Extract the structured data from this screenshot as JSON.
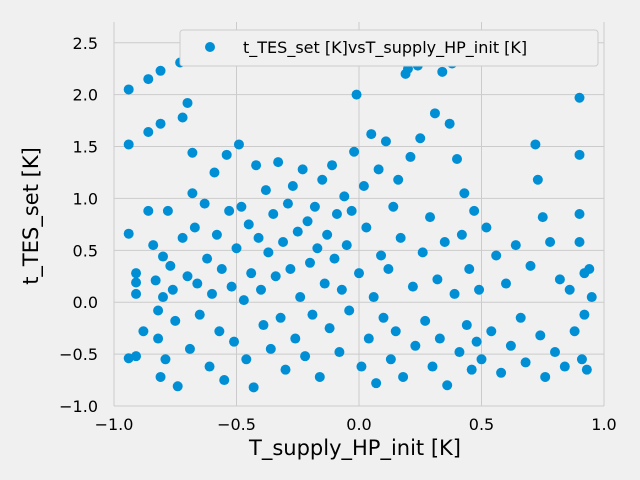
{
  "chart_data": {
    "type": "scatter",
    "xlabel": "T_supply_HP_init [K]",
    "ylabel": "t_TES_set [K]",
    "xlim": [
      -1.0,
      1.0
    ],
    "ylim": [
      -1.0,
      2.7
    ],
    "xticks": [
      -1.0,
      -0.5,
      0.0,
      0.5,
      1.0
    ],
    "xtick_labels": [
      "−1.0",
      "−0.5",
      "0.0",
      "0.5",
      "1.0"
    ],
    "yticks": [
      -1.0,
      -0.5,
      0.0,
      0.5,
      1.0,
      1.5,
      2.0,
      2.5
    ],
    "ytick_labels": [
      "−1.0",
      "−0.5",
      "0.0",
      "0.5",
      "1.0",
      "1.5",
      "2.0",
      "2.5"
    ],
    "grid": true,
    "legend_position": "top-right",
    "colors": {
      "marker": "#008fd5",
      "grid": "#cbcbcb",
      "background": "#f0f0f0"
    },
    "series": [
      {
        "name": "t_TES_set [K]vsT_supply_HP_init [K]",
        "points": [
          [
            -0.94,
            2.05
          ],
          [
            -0.94,
            1.52
          ],
          [
            -0.94,
            0.66
          ],
          [
            -0.94,
            -0.54
          ],
          [
            -0.91,
            -0.52
          ],
          [
            -0.91,
            0.28
          ],
          [
            -0.91,
            0.19
          ],
          [
            -0.91,
            0.08
          ],
          [
            -0.88,
            -0.28
          ],
          [
            -0.86,
            1.64
          ],
          [
            -0.86,
            2.15
          ],
          [
            -0.86,
            0.88
          ],
          [
            -0.84,
            0.55
          ],
          [
            -0.83,
            0.21
          ],
          [
            -0.82,
            -0.08
          ],
          [
            -0.82,
            -0.35
          ],
          [
            -0.81,
            2.23
          ],
          [
            -0.81,
            1.72
          ],
          [
            -0.81,
            -0.72
          ],
          [
            -0.8,
            0.44
          ],
          [
            -0.8,
            0.05
          ],
          [
            -0.79,
            -0.55
          ],
          [
            -0.78,
            0.88
          ],
          [
            -0.77,
            0.35
          ],
          [
            -0.76,
            0.12
          ],
          [
            -0.75,
            -0.18
          ],
          [
            -0.74,
            -0.81
          ],
          [
            -0.73,
            2.31
          ],
          [
            -0.72,
            1.78
          ],
          [
            -0.72,
            0.62
          ],
          [
            -0.71,
            2.38
          ],
          [
            -0.7,
            1.92
          ],
          [
            -0.7,
            0.25
          ],
          [
            -0.69,
            -0.45
          ],
          [
            -0.68,
            1.44
          ],
          [
            -0.68,
            1.05
          ],
          [
            -0.67,
            0.72
          ],
          [
            -0.66,
            0.18
          ],
          [
            -0.65,
            -0.12
          ],
          [
            -0.64,
            2.42
          ],
          [
            -0.63,
            0.95
          ],
          [
            -0.62,
            0.42
          ],
          [
            -0.61,
            -0.62
          ],
          [
            -0.6,
            0.08
          ],
          [
            -0.59,
            1.25
          ],
          [
            -0.58,
            0.65
          ],
          [
            -0.57,
            -0.28
          ],
          [
            -0.56,
            0.32
          ],
          [
            -0.55,
            -0.75
          ],
          [
            -0.54,
            1.42
          ],
          [
            -0.53,
            0.88
          ],
          [
            -0.52,
            0.15
          ],
          [
            -0.51,
            -0.38
          ],
          [
            -0.5,
            0.52
          ],
          [
            -0.49,
            1.52
          ],
          [
            -0.48,
            0.92
          ],
          [
            -0.47,
            0.02
          ],
          [
            -0.46,
            -0.55
          ],
          [
            -0.45,
            0.75
          ],
          [
            -0.44,
            0.28
          ],
          [
            -0.43,
            -0.82
          ],
          [
            -0.42,
            1.32
          ],
          [
            -0.41,
            0.62
          ],
          [
            -0.4,
            0.12
          ],
          [
            -0.39,
            -0.22
          ],
          [
            -0.38,
            1.08
          ],
          [
            -0.37,
            0.48
          ],
          [
            -0.36,
            -0.45
          ],
          [
            -0.35,
            0.85
          ],
          [
            -0.34,
            0.25
          ],
          [
            -0.33,
            1.35
          ],
          [
            -0.32,
            -0.15
          ],
          [
            -0.31,
            0.58
          ],
          [
            -0.3,
            -0.65
          ],
          [
            -0.29,
            0.95
          ],
          [
            -0.28,
            0.32
          ],
          [
            -0.27,
            1.12
          ],
          [
            -0.26,
            -0.35
          ],
          [
            -0.25,
            0.68
          ],
          [
            -0.24,
            0.05
          ],
          [
            -0.23,
            1.28
          ],
          [
            -0.22,
            -0.52
          ],
          [
            -0.21,
            0.78
          ],
          [
            -0.2,
            0.38
          ],
          [
            -0.19,
            -0.12
          ],
          [
            -0.18,
            0.92
          ],
          [
            -0.17,
            0.52
          ],
          [
            -0.16,
            -0.72
          ],
          [
            -0.15,
            1.18
          ],
          [
            -0.14,
            0.18
          ],
          [
            -0.13,
            0.65
          ],
          [
            -0.12,
            -0.25
          ],
          [
            -0.11,
            1.32
          ],
          [
            -0.1,
            0.42
          ],
          [
            -0.09,
            0.85
          ],
          [
            -0.08,
            -0.48
          ],
          [
            -0.07,
            0.12
          ],
          [
            -0.06,
            1.02
          ],
          [
            -0.05,
            0.55
          ],
          [
            -0.04,
            -0.08
          ],
          [
            -0.03,
            0.88
          ],
          [
            -0.02,
            1.45
          ],
          [
            -0.01,
            2.0
          ],
          [
            0.0,
            0.28
          ],
          [
            0.01,
            -0.62
          ],
          [
            0.02,
            1.12
          ],
          [
            0.03,
            0.72
          ],
          [
            0.04,
            -0.35
          ],
          [
            0.05,
            1.62
          ],
          [
            0.06,
            0.05
          ],
          [
            0.07,
            -0.78
          ],
          [
            0.08,
            1.28
          ],
          [
            0.09,
            0.45
          ],
          [
            0.1,
            -0.15
          ],
          [
            0.11,
            1.55
          ],
          [
            0.12,
            0.32
          ],
          [
            0.13,
            -0.55
          ],
          [
            0.14,
            0.92
          ],
          [
            0.15,
            -0.28
          ],
          [
            0.16,
            1.18
          ],
          [
            0.17,
            0.62
          ],
          [
            0.18,
            -0.72
          ],
          [
            0.19,
            2.2
          ],
          [
            0.2,
            2.25
          ],
          [
            0.21,
            1.4
          ],
          [
            0.22,
            0.15
          ],
          [
            0.23,
            -0.42
          ],
          [
            0.24,
            2.28
          ],
          [
            0.25,
            1.58
          ],
          [
            0.26,
            0.48
          ],
          [
            0.27,
            -0.18
          ],
          [
            0.28,
            2.32
          ],
          [
            0.29,
            0.82
          ],
          [
            0.3,
            -0.62
          ],
          [
            0.31,
            1.82
          ],
          [
            0.32,
            0.22
          ],
          [
            0.33,
            -0.35
          ],
          [
            0.34,
            2.22
          ],
          [
            0.35,
            0.58
          ],
          [
            0.36,
            -0.8
          ],
          [
            0.37,
            1.72
          ],
          [
            0.38,
            2.3
          ],
          [
            0.39,
            0.08
          ],
          [
            0.4,
            1.38
          ],
          [
            0.41,
            -0.48
          ],
          [
            0.42,
            0.65
          ],
          [
            0.43,
            1.05
          ],
          [
            0.44,
            -0.22
          ],
          [
            0.45,
            0.32
          ],
          [
            0.46,
            -0.65
          ],
          [
            0.47,
            0.88
          ],
          [
            0.48,
            -0.38
          ],
          [
            0.49,
            0.12
          ],
          [
            0.5,
            -0.55
          ],
          [
            0.52,
            0.72
          ],
          [
            0.54,
            -0.28
          ],
          [
            0.56,
            0.45
          ],
          [
            0.58,
            -0.68
          ],
          [
            0.6,
            0.18
          ],
          [
            0.62,
            -0.42
          ],
          [
            0.64,
            0.55
          ],
          [
            0.66,
            -0.15
          ],
          [
            0.68,
            -0.58
          ],
          [
            0.7,
            0.35
          ],
          [
            0.72,
            1.52
          ],
          [
            0.73,
            1.18
          ],
          [
            0.74,
            -0.32
          ],
          [
            0.75,
            0.82
          ],
          [
            0.76,
            -0.72
          ],
          [
            0.78,
            0.58
          ],
          [
            0.8,
            -0.48
          ],
          [
            0.82,
            0.22
          ],
          [
            0.84,
            -0.62
          ],
          [
            0.86,
            0.12
          ],
          [
            0.88,
            -0.28
          ],
          [
            0.9,
            1.97
          ],
          [
            0.9,
            1.42
          ],
          [
            0.9,
            0.85
          ],
          [
            0.9,
            0.58
          ],
          [
            0.91,
            -0.55
          ],
          [
            0.92,
            0.28
          ],
          [
            0.92,
            -0.12
          ],
          [
            0.93,
            -0.65
          ],
          [
            0.94,
            0.32
          ],
          [
            0.95,
            0.05
          ]
        ]
      }
    ]
  }
}
